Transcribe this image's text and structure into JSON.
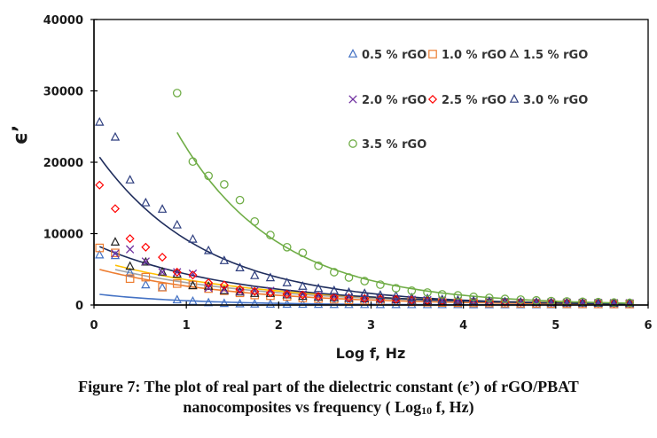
{
  "chart_data": {
    "type": "scatter",
    "title": "",
    "xlabel": "Log f, Hz",
    "ylabel": "ϵ’",
    "xlim": [
      0,
      6
    ],
    "ylim": [
      0,
      40000
    ],
    "xticks": [
      "0",
      "1",
      "2",
      "3",
      "4",
      "5",
      "6"
    ],
    "yticks": [
      "0",
      "10000",
      "20000",
      "30000",
      "40000"
    ],
    "grid": false,
    "legend_position": "top-right (inside plot)",
    "trendlines": "exponential fit per series",
    "x": [
      0.06,
      0.23,
      0.39,
      0.56,
      0.74,
      0.9,
      1.07,
      1.24,
      1.41,
      1.58,
      1.74,
      1.91,
      2.09,
      2.26,
      2.43,
      2.6,
      2.76,
      2.93,
      3.1,
      3.27,
      3.44,
      3.61,
      3.77,
      3.94,
      4.11,
      4.28,
      4.45,
      4.62,
      4.79,
      4.95,
      5.12,
      5.29,
      5.46,
      5.63,
      5.8
    ],
    "series": [
      {
        "name": "0.5 % rGO",
        "marker": "triangle",
        "color": "#4472C4",
        "line_color": "#4472C4",
        "values": [
          7000,
          6900,
          4500,
          2800,
          2400,
          700,
          500,
          300,
          200,
          150,
          120,
          100,
          90,
          80,
          70,
          60,
          50,
          50,
          40,
          40,
          30,
          30,
          30,
          30,
          20,
          20,
          20,
          20,
          20,
          20,
          20,
          20,
          20,
          20,
          20
        ]
      },
      {
        "name": "1.0 % rGO",
        "marker": "square",
        "color": "#ED7D31",
        "line_color": "#ED7D31",
        "values": [
          8000,
          7300,
          3700,
          3900,
          2500,
          3000,
          2800,
          2300,
          2000,
          1700,
          1400,
          1300,
          1200,
          1000,
          900,
          800,
          700,
          650,
          600,
          500,
          450,
          400,
          350,
          320,
          300,
          280,
          260,
          240,
          220,
          200,
          180,
          170,
          160,
          150,
          140
        ]
      },
      {
        "name": "1.5 % rGO",
        "marker": "triangle",
        "color": "#222222",
        "line_color": "#A5A5A5",
        "values": [
          null,
          8800,
          5400,
          6000,
          4600,
          4300,
          2700,
          2600,
          2000,
          1800,
          1600,
          1600,
          1400,
          1200,
          1100,
          1000,
          900,
          850,
          800,
          700,
          650,
          600,
          550,
          500,
          450,
          420,
          400,
          380,
          350,
          320,
          300,
          280,
          260,
          240,
          220
        ]
      },
      {
        "name": "2.0 % rGO",
        "marker": "x",
        "color": "#7030A0",
        "line_color": "#FFC000",
        "values": [
          null,
          7200,
          7800,
          6100,
          4600,
          4600,
          4400,
          2400,
          2200,
          1900,
          2000,
          2000,
          1600,
          1500,
          1300,
          1200,
          1100,
          1000,
          900,
          800,
          750,
          700,
          650,
          600,
          550,
          500,
          450,
          420,
          400,
          380,
          350,
          320,
          300,
          280,
          260
        ]
      },
      {
        "name": "2.5 % rGO",
        "marker": "diamond",
        "color": "#FF0000",
        "line_color": "#1F2D5C",
        "values": [
          16800,
          13500,
          9300,
          8100,
          6700,
          4600,
          4200,
          3100,
          2800,
          2200,
          1900,
          1700,
          1500,
          1400,
          1200,
          1100,
          1000,
          900,
          850,
          800,
          700,
          650,
          600,
          550,
          500,
          450,
          420,
          400,
          380,
          350,
          320,
          300,
          280,
          260,
          240
        ]
      },
      {
        "name": "3.0 % rGO",
        "marker": "triangle",
        "color": "#2F3F7F",
        "line_color": "#1F2D5C",
        "values": [
          25600,
          23500,
          17500,
          14300,
          13400,
          11200,
          9200,
          7600,
          6200,
          5200,
          4100,
          3800,
          3100,
          2600,
          2300,
          2000,
          1750,
          1600,
          1350,
          1250,
          1000,
          870,
          750,
          650,
          560,
          480,
          420,
          380,
          340,
          300,
          270,
          250,
          230,
          210,
          200
        ]
      },
      {
        "name": "3.5 % rGO",
        "marker": "circle",
        "color": "#70AD47",
        "line_color": "#70AD47",
        "values": [
          null,
          null,
          null,
          null,
          null,
          29700,
          20100,
          18100,
          16900,
          14700,
          11700,
          9800,
          8100,
          7300,
          5500,
          4600,
          3850,
          3350,
          2850,
          2350,
          2000,
          1750,
          1500,
          1350,
          1150,
          1000,
          850,
          750,
          650,
          550,
          500,
          450,
          400,
          350,
          300
        ]
      }
    ]
  },
  "caption": {
    "line1": "Figure 7: The plot of real part of the dielectric constant (ϵ’) of rGO/PBAT",
    "line2_pre": "nanocomposites vs frequency ( Log",
    "line2_sub": "10",
    "line2_post": " f, Hz)"
  }
}
